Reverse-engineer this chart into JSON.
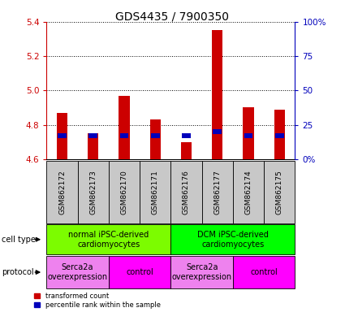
{
  "title": "GDS4435 / 7900350",
  "samples": [
    "GSM862172",
    "GSM862173",
    "GSM862170",
    "GSM862171",
    "GSM862176",
    "GSM862177",
    "GSM862174",
    "GSM862175"
  ],
  "transformed_counts": [
    4.87,
    4.75,
    4.97,
    4.83,
    4.7,
    5.35,
    4.9,
    4.89
  ],
  "percentile_ranks": [
    17,
    17,
    17,
    17,
    17,
    20,
    17,
    17
  ],
  "bar_base": 4.6,
  "ylim": [
    4.6,
    5.4
  ],
  "yticks_left": [
    4.6,
    4.8,
    5.0,
    5.2,
    5.4
  ],
  "yticks_right": [
    0,
    25,
    50,
    75,
    100
  ],
  "y_right_labels": [
    "0%",
    "25",
    "50",
    "75",
    "100%"
  ],
  "cell_type_groups": [
    {
      "label": "normal iPSC-derived\ncardiomyocytes",
      "start": 0,
      "end": 4,
      "color": "#7CFC00"
    },
    {
      "label": "DCM iPSC-derived\ncardiomyocytes",
      "start": 4,
      "end": 8,
      "color": "#00FF00"
    }
  ],
  "protocol_groups": [
    {
      "label": "Serca2a\noverexpression",
      "start": 0,
      "end": 2,
      "color": "#EE82EE"
    },
    {
      "label": "control",
      "start": 2,
      "end": 4,
      "color": "#FF00FF"
    },
    {
      "label": "Serca2a\noverexpression",
      "start": 4,
      "end": 6,
      "color": "#EE82EE"
    },
    {
      "label": "control",
      "start": 6,
      "end": 8,
      "color": "#FF00FF"
    }
  ],
  "red_color": "#CC0000",
  "blue_color": "#0000BB",
  "bar_width": 0.35,
  "bg_color": "#FFFFFF",
  "left_axis_color": "#CC0000",
  "right_axis_color": "#0000BB",
  "title_fontsize": 10,
  "tick_fontsize": 7.5,
  "sample_fontsize": 6.5,
  "label_fontsize": 7,
  "sample_bg_color": "#C8C8C8"
}
